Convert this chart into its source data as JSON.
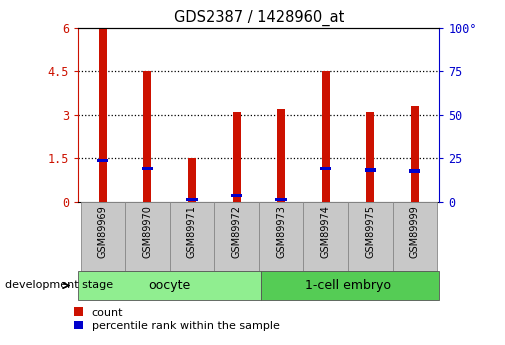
{
  "title": "GDS2387 / 1428960_at",
  "samples": [
    "GSM89969",
    "GSM89970",
    "GSM89971",
    "GSM89972",
    "GSM89973",
    "GSM89974",
    "GSM89975",
    "GSM89999"
  ],
  "count_values": [
    6.0,
    4.5,
    1.5,
    3.1,
    3.2,
    4.5,
    3.1,
    3.3
  ],
  "percentile_values": [
    1.42,
    1.15,
    0.08,
    0.22,
    0.08,
    1.15,
    1.1,
    1.05
  ],
  "bar_color": "#cc1100",
  "percentile_color": "#0000cc",
  "ylim_left": [
    0,
    6
  ],
  "ylim_right": [
    0,
    100
  ],
  "yticks_left": [
    0,
    1.5,
    3.0,
    4.5,
    6.0
  ],
  "ytick_labels_left": [
    "0",
    "1.5",
    "3",
    "4.5",
    "6"
  ],
  "yticks_right": [
    0,
    25,
    50,
    75,
    100
  ],
  "ytick_labels_right": [
    "0",
    "25",
    "50",
    "75",
    "100°"
  ],
  "oocyte_label": "oocyte",
  "embryo_label": "1-cell embryo",
  "group_prefix": "development stage",
  "legend_count": "count",
  "legend_percentile": "percentile rank within the sample",
  "oocyte_color": "#90ee90",
  "embryo_color": "#55cc55",
  "tick_bg_color": "#c8c8c8",
  "bar_width": 0.18
}
